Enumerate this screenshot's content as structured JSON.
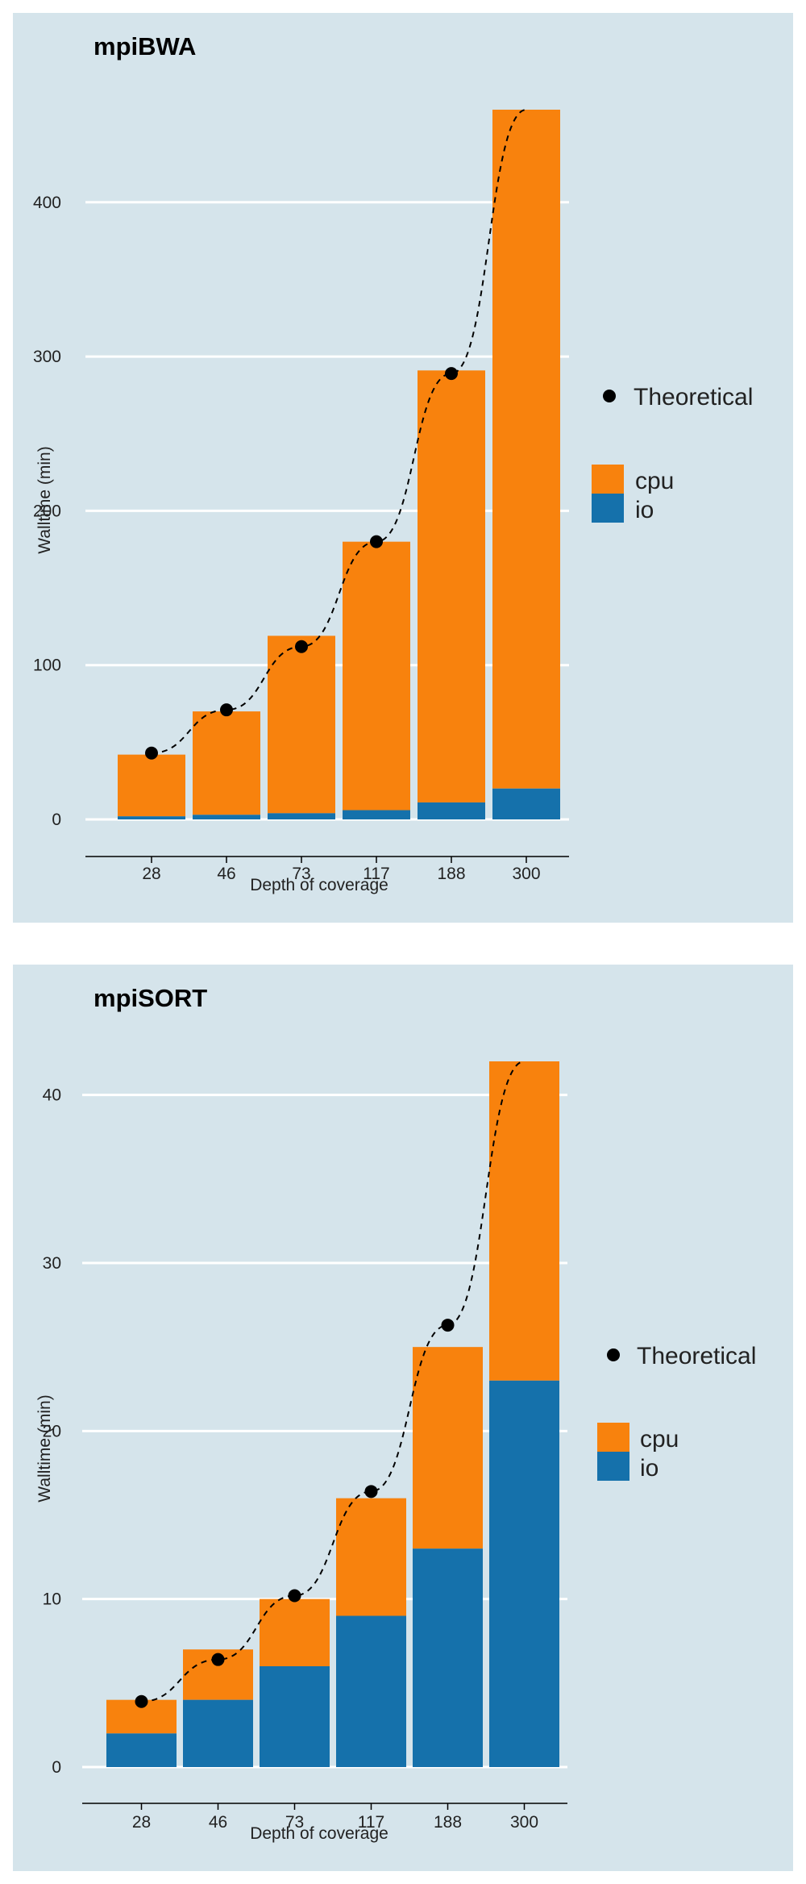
{
  "theme": {
    "panel_bg": "#d5e4eb",
    "cpu_color": "#f8820d",
    "io_color": "#1571ab",
    "theoretical_color": "#000000"
  },
  "chart_data": [
    {
      "type": "bar",
      "stacked": true,
      "title": "mpiBWA",
      "xlabel": "Depth of coverage",
      "ylabel": "Walltime (min)",
      "categories": [
        "28",
        "46",
        "73",
        "117",
        "188",
        "300"
      ],
      "ylim": [
        0,
        460
      ],
      "yticks": [
        0,
        100,
        200,
        300,
        400
      ],
      "grid": true,
      "legend_position": "right",
      "series": [
        {
          "name": "io",
          "values": [
            2,
            3,
            4,
            6,
            11,
            20
          ]
        },
        {
          "name": "cpu",
          "values": [
            40,
            67,
            115,
            174,
            280,
            440
          ]
        }
      ],
      "theoretical": {
        "name": "Theoretical",
        "points": [
          [
            1,
            43
          ],
          [
            2,
            71
          ],
          [
            3,
            112
          ],
          [
            4,
            180
          ],
          [
            5,
            289
          ],
          [
            6,
            460
          ]
        ]
      },
      "legend": [
        "Theoretical",
        "cpu",
        "io"
      ]
    },
    {
      "type": "bar",
      "stacked": true,
      "title": "mpiSORT",
      "xlabel": "Depth of coverage",
      "ylabel": "Walltime (min)",
      "categories": [
        "28",
        "46",
        "73",
        "117",
        "188",
        "300"
      ],
      "ylim": [
        0,
        42
      ],
      "yticks": [
        0,
        10,
        20,
        30,
        40
      ],
      "grid": true,
      "legend_position": "right",
      "series": [
        {
          "name": "io",
          "values": [
            2,
            4,
            6,
            9,
            13,
            23
          ]
        },
        {
          "name": "cpu",
          "values": [
            2,
            3,
            4,
            7,
            12,
            19
          ]
        }
      ],
      "theoretical": {
        "name": "Theoretical",
        "points": [
          [
            1,
            3.9
          ],
          [
            2,
            6.4
          ],
          [
            3,
            10.2
          ],
          [
            4,
            16.4
          ],
          [
            5,
            26.3
          ],
          [
            6,
            42
          ]
        ]
      },
      "legend": [
        "Theoretical",
        "cpu",
        "io"
      ]
    }
  ]
}
